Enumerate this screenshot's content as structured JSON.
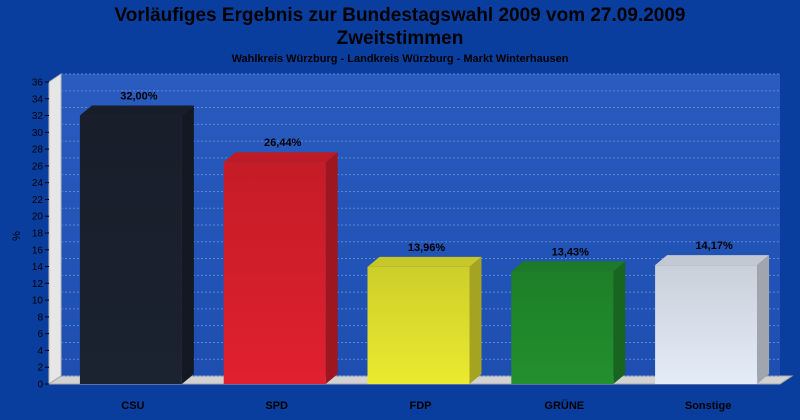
{
  "chart_data": {
    "type": "bar",
    "title_line1": "Vorläufiges Ergebnis zur Bundestagswahl 2009 vom 27.09.2009",
    "title_line2": "Zweitstimmen",
    "subtitle": "Wahlkreis Würzburg - Landkreis Würzburg - Markt Winterhausen",
    "ylabel": "%",
    "ylim": [
      0,
      36
    ],
    "yticks": [
      0,
      2,
      4,
      6,
      8,
      10,
      12,
      14,
      16,
      18,
      20,
      22,
      24,
      26,
      28,
      30,
      32,
      34,
      36
    ],
    "categories": [
      "CSU",
      "SPD",
      "FDP",
      "GRÜNE",
      "Sonstige"
    ],
    "values": [
      32.0,
      26.44,
      13.96,
      13.43,
      14.17
    ],
    "value_labels": [
      "32,00%",
      "26,44%",
      "13,96%",
      "13,43%",
      "14,17%"
    ],
    "colors": [
      "#1b2230",
      "#e0202e",
      "#eaea30",
      "#22902e",
      "#e4ecf8"
    ],
    "grid": true,
    "background_color": "#0a3e9e"
  }
}
